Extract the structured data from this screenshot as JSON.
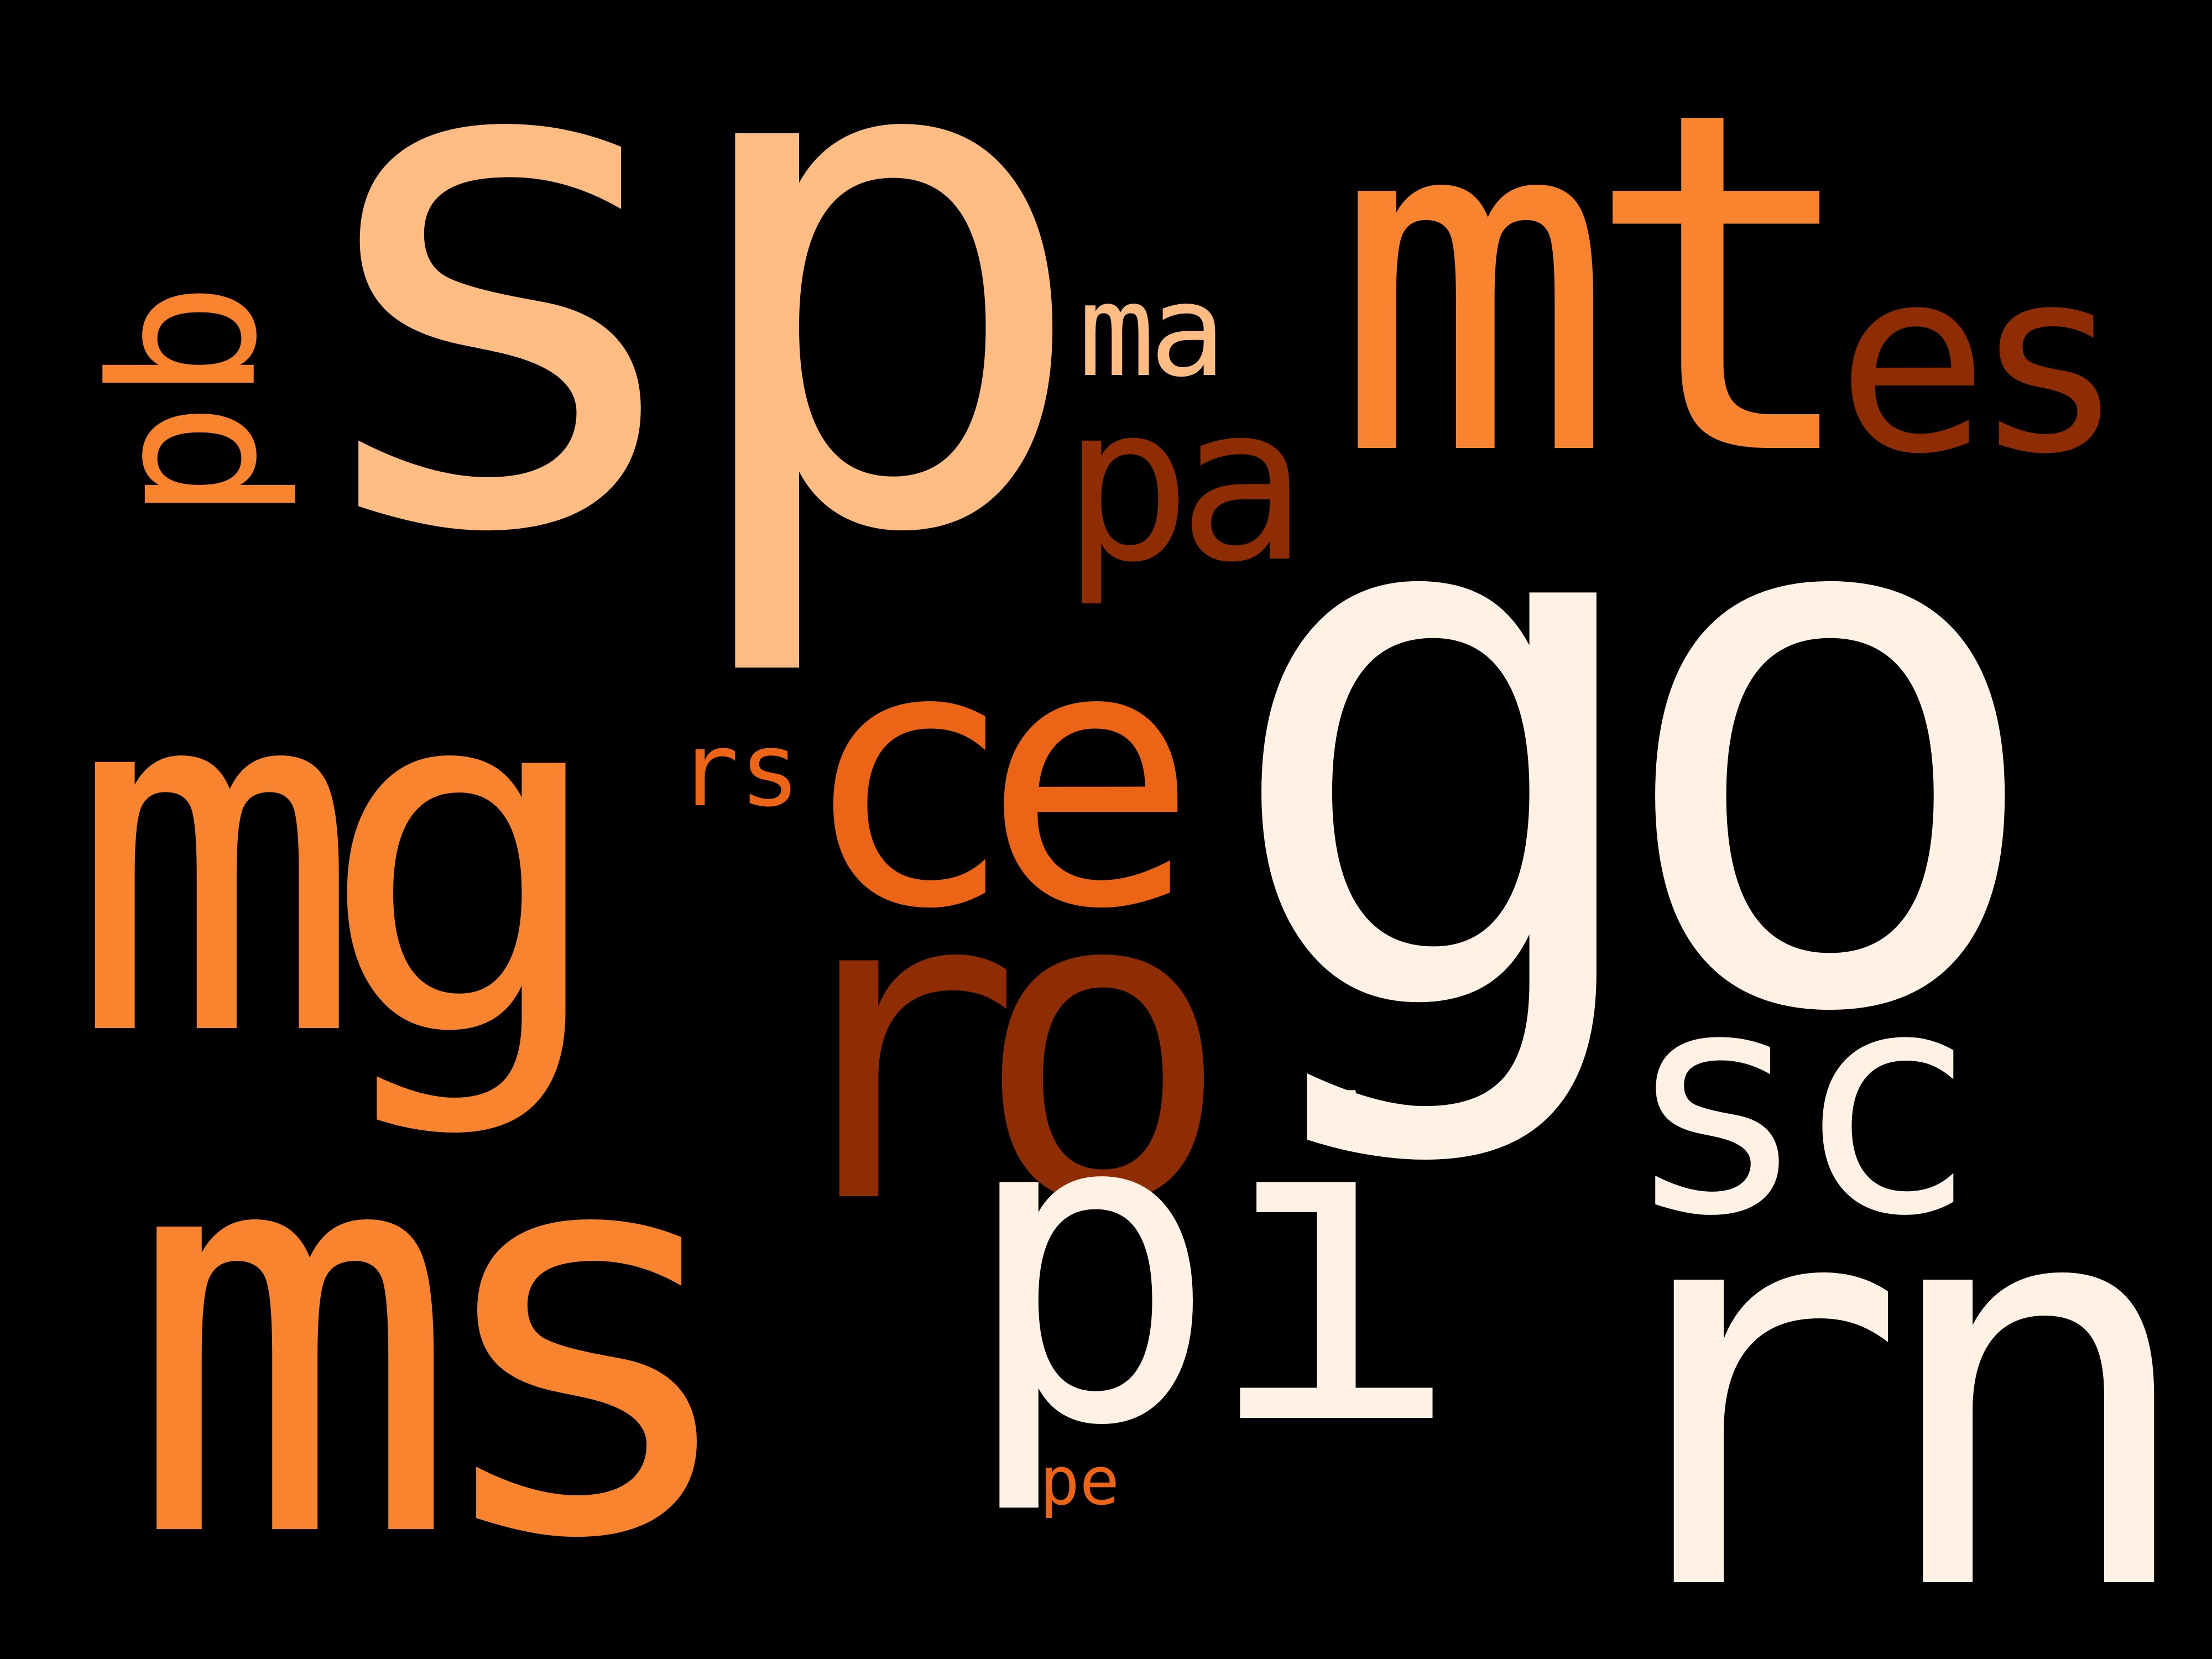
{
  "background": "#000000",
  "palette": {
    "lightest": "#FFF1E3",
    "light": "#FFBD84",
    "mid": "#F8842F",
    "bright": "#EC6415",
    "dark": "#8E2D04"
  },
  "words": [
    {
      "id": "sp",
      "text": "sp",
      "rank": 2,
      "color": "light",
      "rotated": false
    },
    {
      "id": "go",
      "text": "go",
      "rank": 1,
      "color": "lightest",
      "rotated": false
    },
    {
      "id": "mt",
      "text": "mt",
      "rank": 4,
      "color": "mid",
      "rotated": false
    },
    {
      "id": "ms",
      "text": "ms",
      "rank": 3,
      "color": "mid",
      "rotated": false
    },
    {
      "id": "rn",
      "text": "rn",
      "rank": 5,
      "color": "lightest",
      "rotated": false
    },
    {
      "id": "mg",
      "text": "mg",
      "rank": 6,
      "color": "mid",
      "rotated": false
    },
    {
      "id": "ro",
      "text": "ro",
      "rank": 7,
      "color": "dark",
      "rotated": false
    },
    {
      "id": "pi",
      "text": "pi",
      "rank": 8,
      "color": "lightest",
      "rotated": false
    },
    {
      "id": "ce",
      "text": "ce",
      "rank": 9,
      "color": "bright",
      "rotated": false
    },
    {
      "id": "sc",
      "text": "sc",
      "rank": 10,
      "color": "lightest",
      "rotated": false
    },
    {
      "id": "es",
      "text": "es",
      "rank": 11,
      "color": "dark",
      "rotated": false
    },
    {
      "id": "pa",
      "text": "pa",
      "rank": 12,
      "color": "dark",
      "rotated": false
    },
    {
      "id": "pb",
      "text": "pb",
      "rank": 13,
      "color": "mid",
      "rotated": true
    },
    {
      "id": "ma",
      "text": "ma",
      "rank": 14,
      "color": "light",
      "rotated": false
    },
    {
      "id": "rs",
      "text": "rs",
      "rank": 15,
      "color": "bright",
      "rotated": false
    },
    {
      "id": "pe",
      "text": "pe",
      "rank": 16,
      "color": "bright",
      "rotated": false
    }
  ]
}
